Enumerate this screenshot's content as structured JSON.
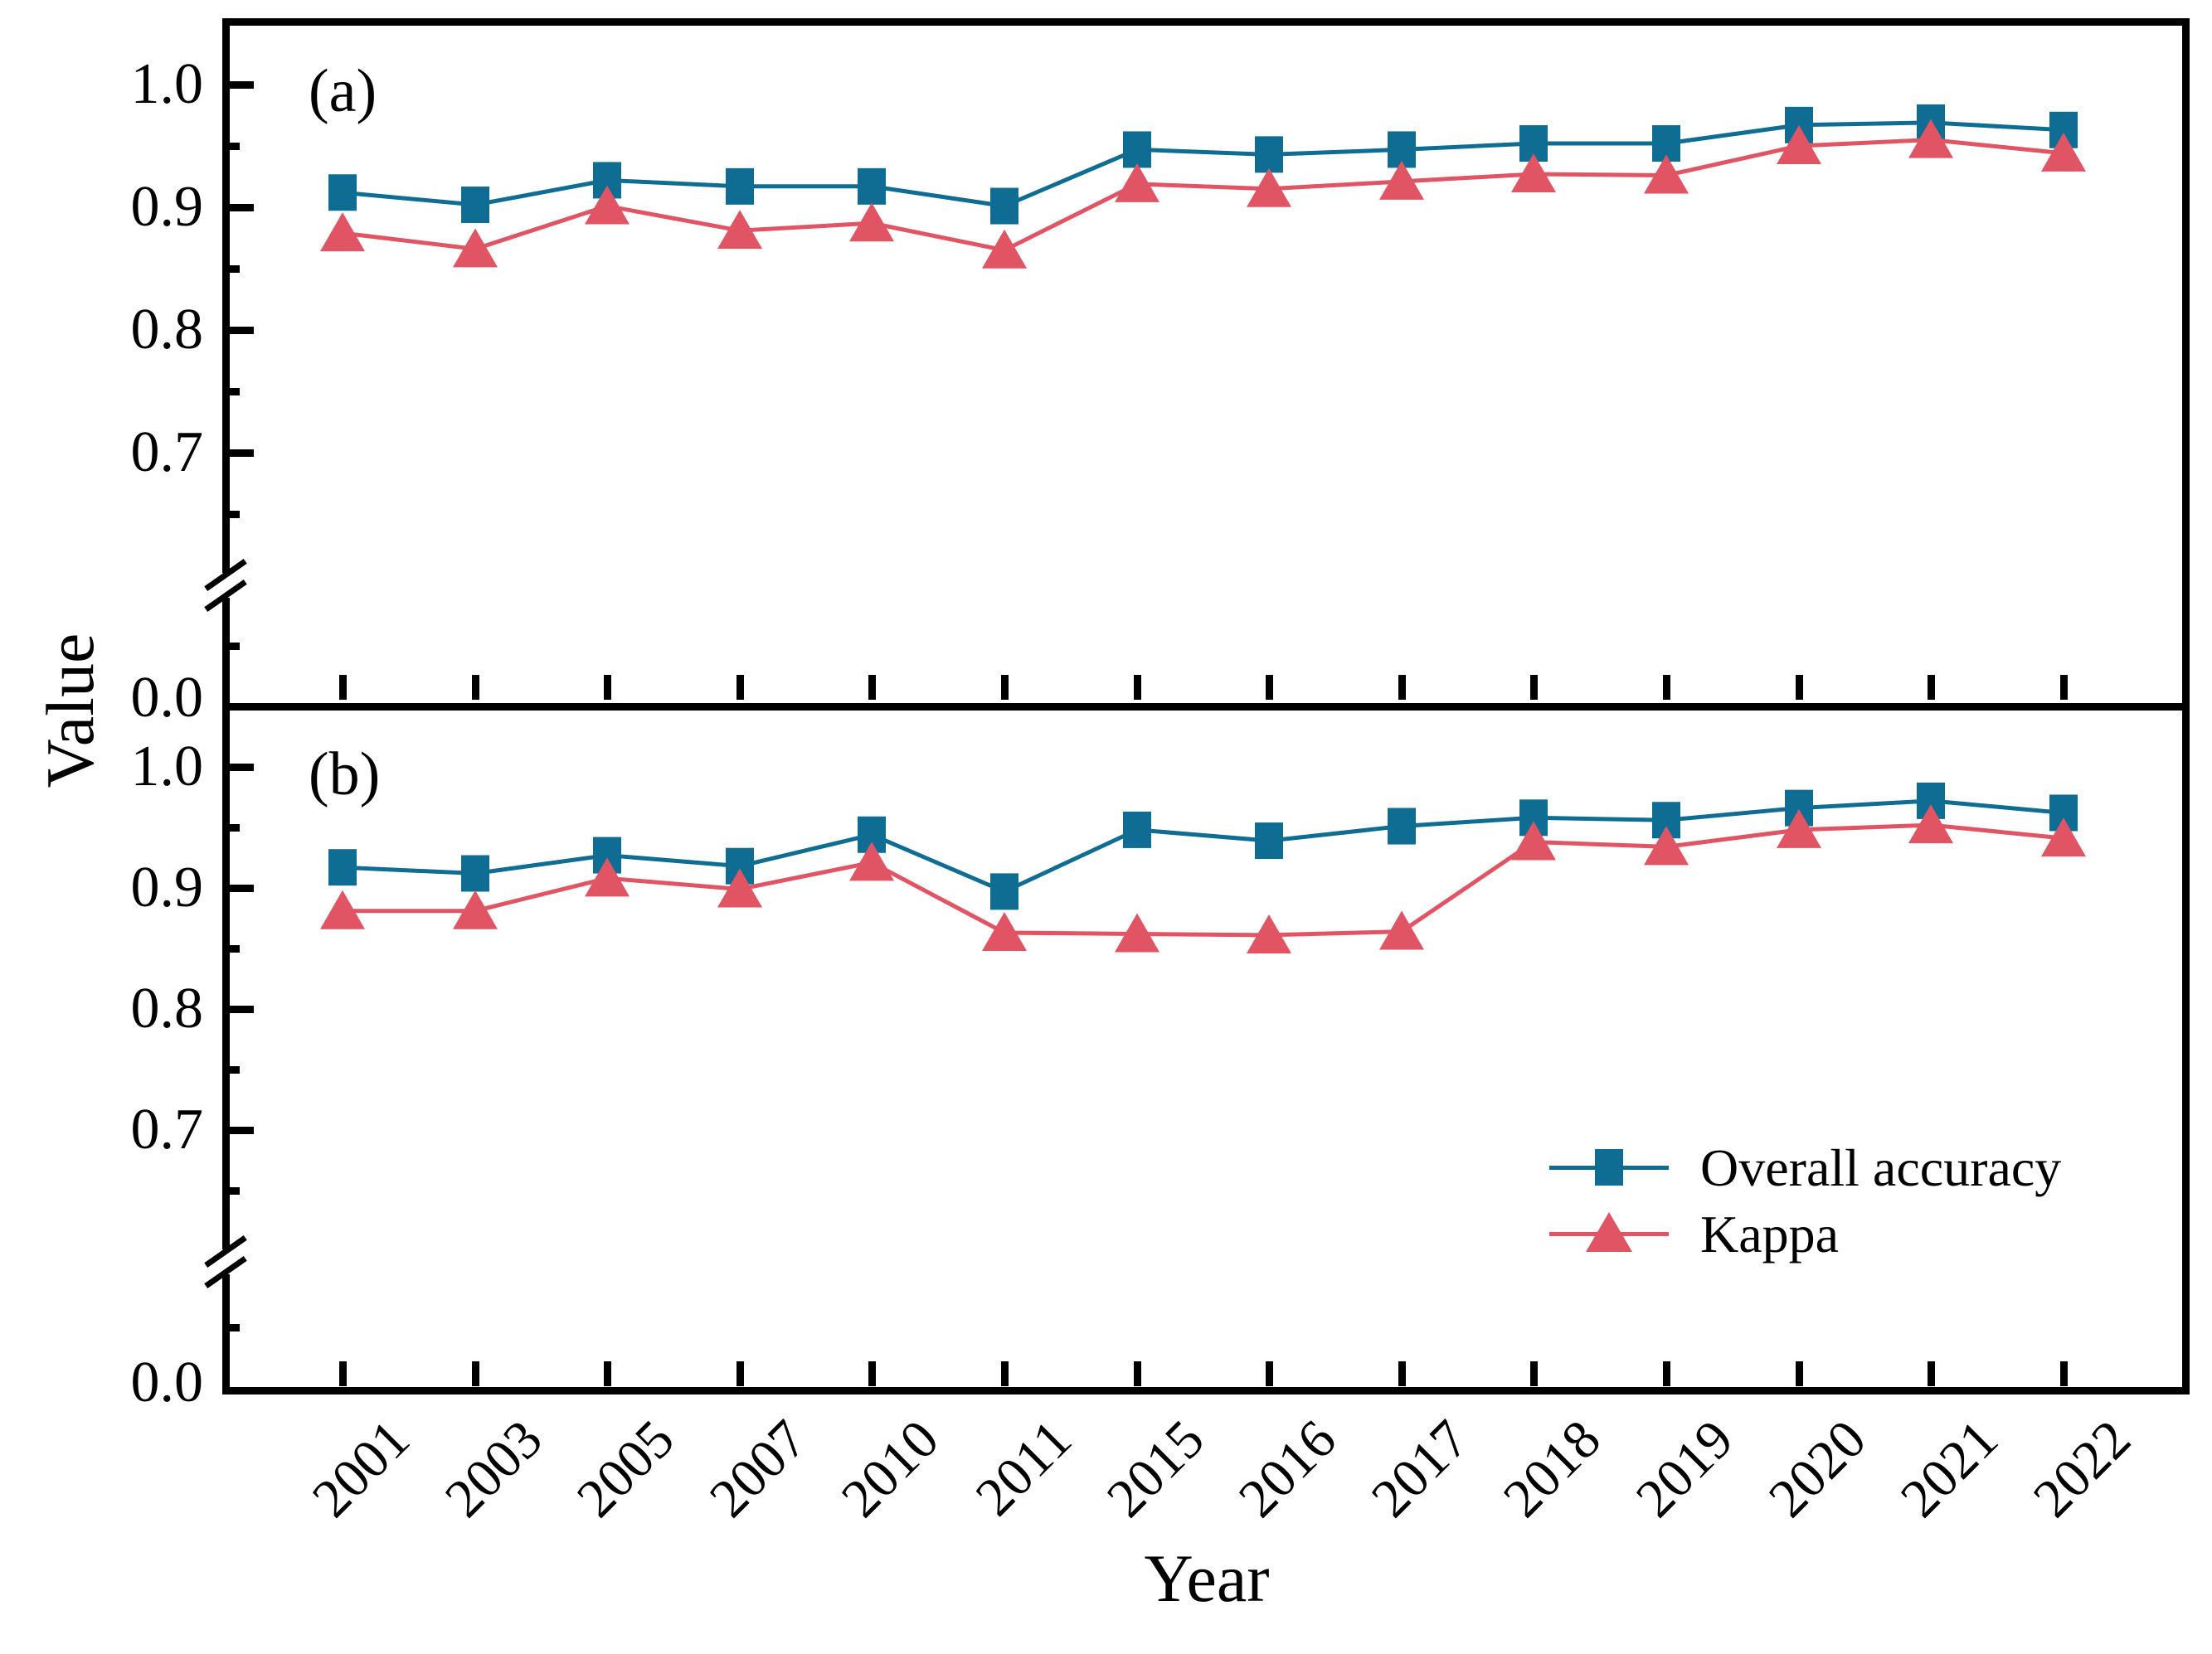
{
  "figure": {
    "y_axis_title": "Value",
    "x_axis_title": "Year",
    "panel_a_label": "(a)",
    "panel_b_label": "(b)",
    "y_tick_labels": [
      "1.0",
      "0.9",
      "0.8",
      "0.7",
      "0.0"
    ],
    "colors": {
      "overall_accuracy": "#0f6d94",
      "kappa": "#e05463",
      "axis": "#000000",
      "background": "#ffffff"
    }
  },
  "legend": {
    "items": [
      {
        "label": "Overall accuracy",
        "marker": "square"
      },
      {
        "label": "Kappa",
        "marker": "triangle"
      }
    ]
  },
  "chart_data": [
    {
      "type": "line",
      "panel": "a",
      "title": "(a)",
      "xlabel": "Year",
      "ylabel": "Value",
      "broken_y_axis": true,
      "y_major_ticks": [
        1.0,
        0.9,
        0.8,
        0.7,
        0.0
      ],
      "legend_position": "lower right of panel b",
      "categories": [
        "2001",
        "2003",
        "2005",
        "2007",
        "2010",
        "2011",
        "2015",
        "2016",
        "2017",
        "2018",
        "2019",
        "2020",
        "2021",
        "2022"
      ],
      "series": [
        {
          "name": "Overall accuracy",
          "values": [
            0.912,
            0.902,
            0.922,
            0.917,
            0.917,
            0.901,
            0.947,
            0.943,
            0.947,
            0.952,
            0.952,
            0.967,
            0.969,
            0.963
          ]
        },
        {
          "name": "Kappa",
          "values": [
            0.879,
            0.866,
            0.901,
            0.881,
            0.887,
            0.865,
            0.919,
            0.915,
            0.921,
            0.927,
            0.926,
            0.95,
            0.955,
            0.944
          ]
        }
      ]
    },
    {
      "type": "line",
      "panel": "b",
      "title": "(b)",
      "xlabel": "Year",
      "ylabel": "Value",
      "broken_y_axis": true,
      "y_major_ticks": [
        1.0,
        0.9,
        0.8,
        0.7,
        0.0
      ],
      "categories": [
        "2001",
        "2003",
        "2005",
        "2007",
        "2010",
        "2011",
        "2015",
        "2016",
        "2017",
        "2018",
        "2019",
        "2020",
        "2021",
        "2022"
      ],
      "series": [
        {
          "name": "Overall accuracy",
          "values": [
            0.917,
            0.912,
            0.927,
            0.918,
            0.944,
            0.897,
            0.948,
            0.939,
            0.951,
            0.958,
            0.956,
            0.966,
            0.972,
            0.962
          ]
        },
        {
          "name": "Kappa",
          "values": [
            0.881,
            0.881,
            0.908,
            0.899,
            0.921,
            0.863,
            0.862,
            0.861,
            0.864,
            0.938,
            0.934,
            0.948,
            0.952,
            0.941
          ]
        }
      ]
    }
  ]
}
